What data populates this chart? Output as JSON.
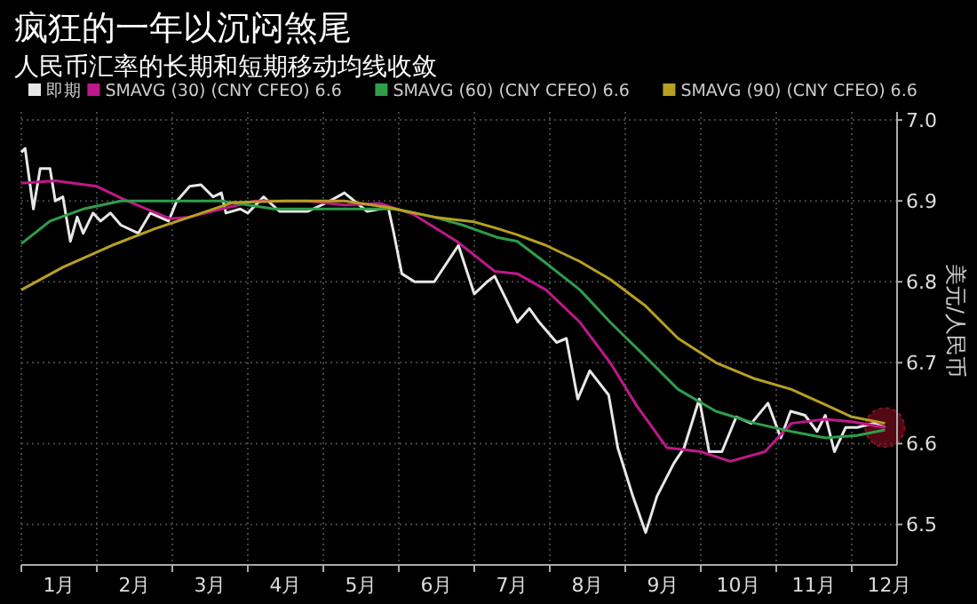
{
  "chart_data": {
    "type": "line",
    "title": "疯狂的一年以沉闷煞尾",
    "subtitle": "人民币汇率的长期和短期移动均线收敛",
    "ylabel": "美元/人民币",
    "legend": "top left",
    "grid": true,
    "line_style": "solid",
    "marker": "none",
    "xlim": [
      0,
      11.6
    ],
    "ylim": [
      6.45,
      7.01
    ],
    "yticks": [
      6.5,
      6.6,
      6.7,
      6.8,
      6.9,
      {
        "value": 7,
        "label": "7.0"
      }
    ],
    "xticks": [
      {
        "value": 0,
        "label": null
      },
      {
        "value": 0.5,
        "label": "1月"
      },
      {
        "value": 1,
        "label": null
      },
      {
        "value": 1.5,
        "label": "2月"
      },
      {
        "value": 2,
        "label": null
      },
      {
        "value": 2.5,
        "label": "3月"
      },
      {
        "value": 3,
        "label": null
      },
      {
        "value": 3.5,
        "label": "4月"
      },
      {
        "value": 4,
        "label": null
      },
      {
        "value": 4.5,
        "label": "5月"
      },
      {
        "value": 5,
        "label": null
      },
      {
        "value": 5.5,
        "label": "6月"
      },
      {
        "value": 6,
        "label": null
      },
      {
        "value": 6.5,
        "label": "7月"
      },
      {
        "value": 7,
        "label": null
      },
      {
        "value": 7.5,
        "label": "8月"
      },
      {
        "value": 8,
        "label": null
      },
      {
        "value": 8.5,
        "label": "9月"
      },
      {
        "value": 9,
        "label": null
      },
      {
        "value": 9.5,
        "label": "10月"
      },
      {
        "value": 10,
        "label": null
      },
      {
        "value": 10.5,
        "label": "11月"
      },
      {
        "value": 11,
        "label": null
      },
      {
        "value": 11.5,
        "label": "12月"
      }
    ],
    "series": [
      {
        "name": "即期",
        "color": "#e8e8e8",
        "x": [
          0,
          0.05,
          0.16,
          0.25,
          0.38,
          0.45,
          0.55,
          0.65,
          0.74,
          0.82,
          0.95,
          1.05,
          1.18,
          1.32,
          1.55,
          1.71,
          1.95,
          2.06,
          2.23,
          2.38,
          2.54,
          2.65,
          2.71,
          2.9,
          3.0,
          3.21,
          3.42,
          3.79,
          4.05,
          4.28,
          4.58,
          4.86,
          4.93,
          5.04,
          5.21,
          5.47,
          5.79,
          6.0,
          6.17,
          6.27,
          6.57,
          6.73,
          6.86,
          7.09,
          7.22,
          7.37,
          7.53,
          7.78,
          7.9,
          8.1,
          8.27,
          8.42,
          8.64,
          8.78,
          8.98,
          9.11,
          9.28,
          9.47,
          9.67,
          9.89,
          10.06,
          10.19,
          10.38,
          10.54,
          10.65,
          10.77,
          10.92,
          11.07,
          11.29,
          11.44
        ],
        "values": [
          6.96,
          6.965,
          6.89,
          6.94,
          6.94,
          6.9,
          6.905,
          6.85,
          6.88,
          6.86,
          6.885,
          6.875,
          6.885,
          6.87,
          6.86,
          6.885,
          6.875,
          6.9,
          6.918,
          6.92,
          6.905,
          6.91,
          6.885,
          6.89,
          6.885,
          6.905,
          6.887,
          6.887,
          6.898,
          6.91,
          6.887,
          6.892,
          6.862,
          6.81,
          6.8,
          6.8,
          6.845,
          6.785,
          6.8,
          6.807,
          6.75,
          6.767,
          6.75,
          6.725,
          6.73,
          6.655,
          6.69,
          6.66,
          6.595,
          6.535,
          6.49,
          6.535,
          6.575,
          6.595,
          6.655,
          6.59,
          6.59,
          6.633,
          6.625,
          6.65,
          6.607,
          6.64,
          6.635,
          6.615,
          6.635,
          6.59,
          6.62,
          6.62,
          6.625,
          6.62
        ]
      },
      {
        "name": "SMAVG (30) (CNY CFEO) 6.6",
        "color": "#c0188a",
        "x": [
          0,
          0.45,
          1.0,
          1.4,
          1.97,
          2.23,
          2.65,
          3.1,
          3.79,
          4.28,
          4.75,
          5.2,
          5.77,
          6.27,
          6.57,
          6.95,
          7.4,
          7.8,
          8.15,
          8.55,
          9.0,
          9.39,
          9.85,
          10.2,
          10.65,
          11.0,
          11.44
        ],
        "values": [
          6.922,
          6.925,
          6.918,
          6.9,
          6.878,
          6.88,
          6.89,
          6.9,
          6.9,
          6.895,
          6.897,
          6.883,
          6.85,
          6.813,
          6.81,
          6.79,
          6.75,
          6.7,
          6.647,
          6.595,
          6.59,
          6.578,
          6.59,
          6.625,
          6.63,
          6.627,
          6.62
        ]
      },
      {
        "name": "SMAVG (60) (CNY CFEO) 6.6",
        "color": "#2e9e4a",
        "x": [
          0,
          0.38,
          0.82,
          1.32,
          2.0,
          2.65,
          3.35,
          4.28,
          4.93,
          5.47,
          5.85,
          6.3,
          6.57,
          6.95,
          7.4,
          7.8,
          8.27,
          8.7,
          9.2,
          9.72,
          10.2,
          10.65,
          11.07,
          11.44
        ],
        "values": [
          6.847,
          6.875,
          6.89,
          6.9,
          6.9,
          6.9,
          6.89,
          6.89,
          6.89,
          6.88,
          6.87,
          6.855,
          6.85,
          6.823,
          6.79,
          6.75,
          6.707,
          6.667,
          6.64,
          6.625,
          6.615,
          6.607,
          6.61,
          6.617
        ]
      },
      {
        "name": "SMAVG (90) (CNY CFEO) 6.6",
        "color": "#b8a020",
        "x": [
          0,
          0.55,
          1.2,
          1.75,
          2.23,
          2.8,
          3.5,
          4.28,
          4.86,
          5.47,
          6.0,
          6.3,
          6.57,
          6.95,
          7.4,
          7.8,
          8.27,
          8.7,
          9.2,
          9.72,
          10.2,
          10.65,
          11.0,
          11.44
        ],
        "values": [
          6.79,
          6.818,
          6.845,
          6.865,
          6.88,
          6.898,
          6.9,
          6.9,
          6.892,
          6.88,
          6.874,
          6.866,
          6.858,
          6.845,
          6.825,
          6.803,
          6.77,
          6.73,
          6.7,
          6.68,
          6.667,
          6.648,
          6.633,
          6.625
        ]
      }
    ]
  }
}
